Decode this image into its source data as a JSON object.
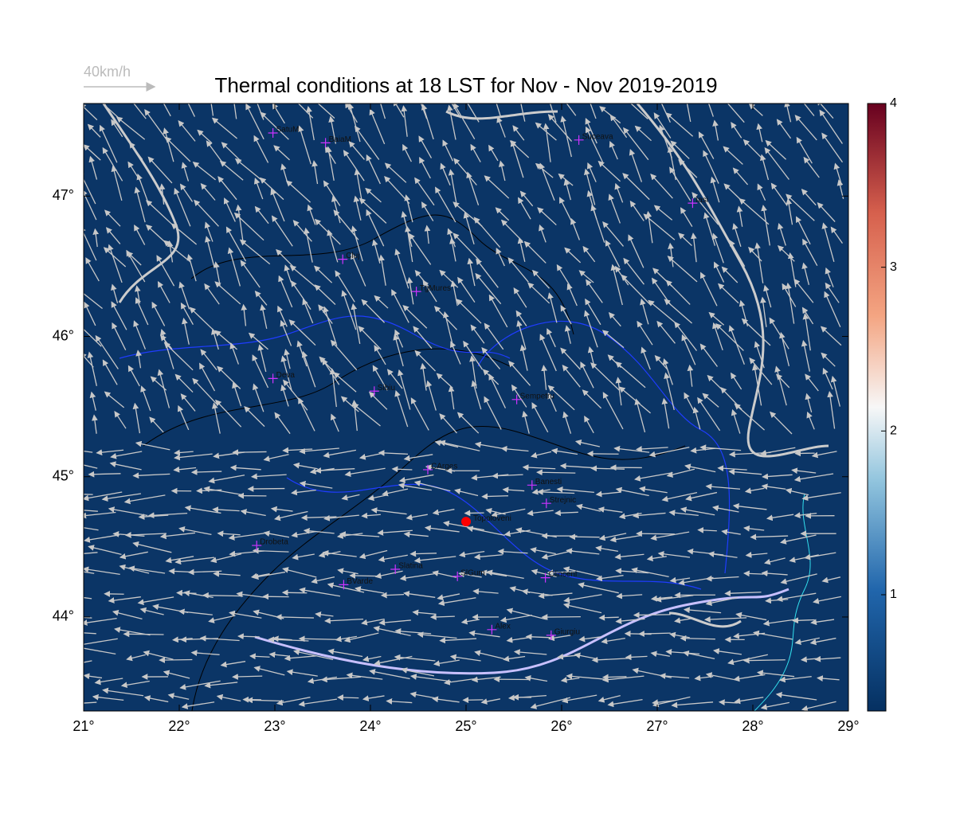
{
  "title": "Thermal conditions at 18 LST for Nov - Nov  2019-2019",
  "legend_label": "40km/h",
  "map": {
    "xlim": [
      21,
      29
    ],
    "ylim": [
      43.33,
      47.66
    ],
    "xticks": [
      {
        "value": 21,
        "label": "21°"
      },
      {
        "value": 22,
        "label": "22°"
      },
      {
        "value": 23,
        "label": "23°"
      },
      {
        "value": 24,
        "label": "24°"
      },
      {
        "value": 25,
        "label": "25°"
      },
      {
        "value": 26,
        "label": "26°"
      },
      {
        "value": 27,
        "label": "27°"
      },
      {
        "value": 28,
        "label": "28°"
      },
      {
        "value": 29,
        "label": "29°"
      }
    ],
    "yticks": [
      {
        "value": 44,
        "label": "44°"
      },
      {
        "value": 45,
        "label": "45°"
      },
      {
        "value": 46,
        "label": "46°"
      },
      {
        "value": 47,
        "label": "47°"
      }
    ],
    "cities": [
      {
        "name": "SatuM",
        "lon": 22.98,
        "lat": 47.45
      },
      {
        "name": "BaiaM",
        "lon": 23.53,
        "lat": 47.38
      },
      {
        "name": "Suceava",
        "lon": 26.18,
        "lat": 47.4
      },
      {
        "name": "Iasi",
        "lon": 27.37,
        "lat": 46.95
      },
      {
        "name": "Cluj",
        "lon": 23.71,
        "lat": 46.55
      },
      {
        "name": "TgMures",
        "lon": 24.48,
        "lat": 46.32
      },
      {
        "name": "Deva",
        "lon": 22.98,
        "lat": 45.7
      },
      {
        "name": "Sibiu",
        "lon": 24.04,
        "lat": 45.61
      },
      {
        "name": "Sempetru",
        "lon": 25.53,
        "lat": 45.55
      },
      {
        "name": "CArges",
        "lon": 24.6,
        "lat": 45.05
      },
      {
        "name": "Banesti",
        "lon": 25.69,
        "lat": 44.94
      },
      {
        "name": "Strejnic",
        "lon": 25.84,
        "lat": 44.81
      },
      {
        "name": "Drobeta",
        "lon": 22.81,
        "lat": 44.51
      },
      {
        "name": "Slatina",
        "lon": 24.26,
        "lat": 44.34
      },
      {
        "name": "SlGum",
        "lon": 24.91,
        "lat": 44.29
      },
      {
        "name": "BVarde",
        "lon": 23.72,
        "lat": 44.23
      },
      {
        "name": "Clinceni",
        "lon": 25.83,
        "lat": 44.28
      },
      {
        "name": "Alex",
        "lon": 25.27,
        "lat": 43.91
      },
      {
        "name": "Giurgiu",
        "lon": 25.89,
        "lat": 43.87
      }
    ],
    "site": {
      "name": "Topoloveni",
      "lon": 25.0,
      "lat": 44.68,
      "color": "#ff0000"
    }
  },
  "colorbar": {
    "clim": [
      0.29,
      4
    ],
    "ticks": [
      1,
      2,
      3,
      4
    ]
  }
}
